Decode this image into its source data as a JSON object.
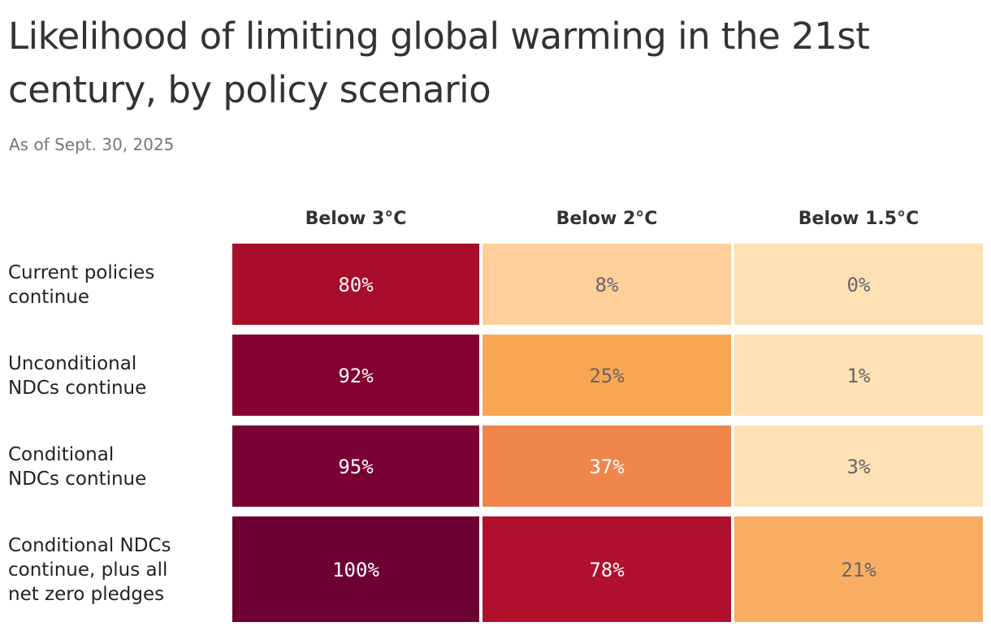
{
  "chart_data": {
    "type": "heatmap",
    "title": "Likelihood of limiting global warming in the 21st century, by policy scenario",
    "subtitle": "As of Sept. 30, 2025",
    "columns": [
      "Below 3°C",
      "Below 2°C",
      "Below 1.5°C"
    ],
    "rows": [
      {
        "label": [
          "Current policies",
          "continue"
        ],
        "values": [
          80,
          8,
          0
        ]
      },
      {
        "label": [
          "Unconditional",
          "NDCs continue"
        ],
        "values": [
          92,
          25,
          1
        ]
      },
      {
        "label": [
          "Conditional",
          "NDCs continue"
        ],
        "values": [
          95,
          37,
          3
        ]
      },
      {
        "label": [
          "Conditional NDCs",
          "continue, plus all",
          "net zero pledges"
        ],
        "values": [
          100,
          78,
          21
        ]
      }
    ],
    "value_suffix": "%",
    "colors": {
      "80": "#a90d2c",
      "8": "#fecf9b",
      "0": "#fde0b4",
      "92": "#830131",
      "25": "#f9a653",
      "1": "#fde0b4",
      "95": "#7b0033",
      "37": "#f0854b",
      "3": "#fde0b4",
      "100": "#6c0033",
      "78": "#b0102c",
      "21": "#f8ad62"
    },
    "text_colors": {
      "light": "#ffffff",
      "dark": "#666666"
    }
  }
}
